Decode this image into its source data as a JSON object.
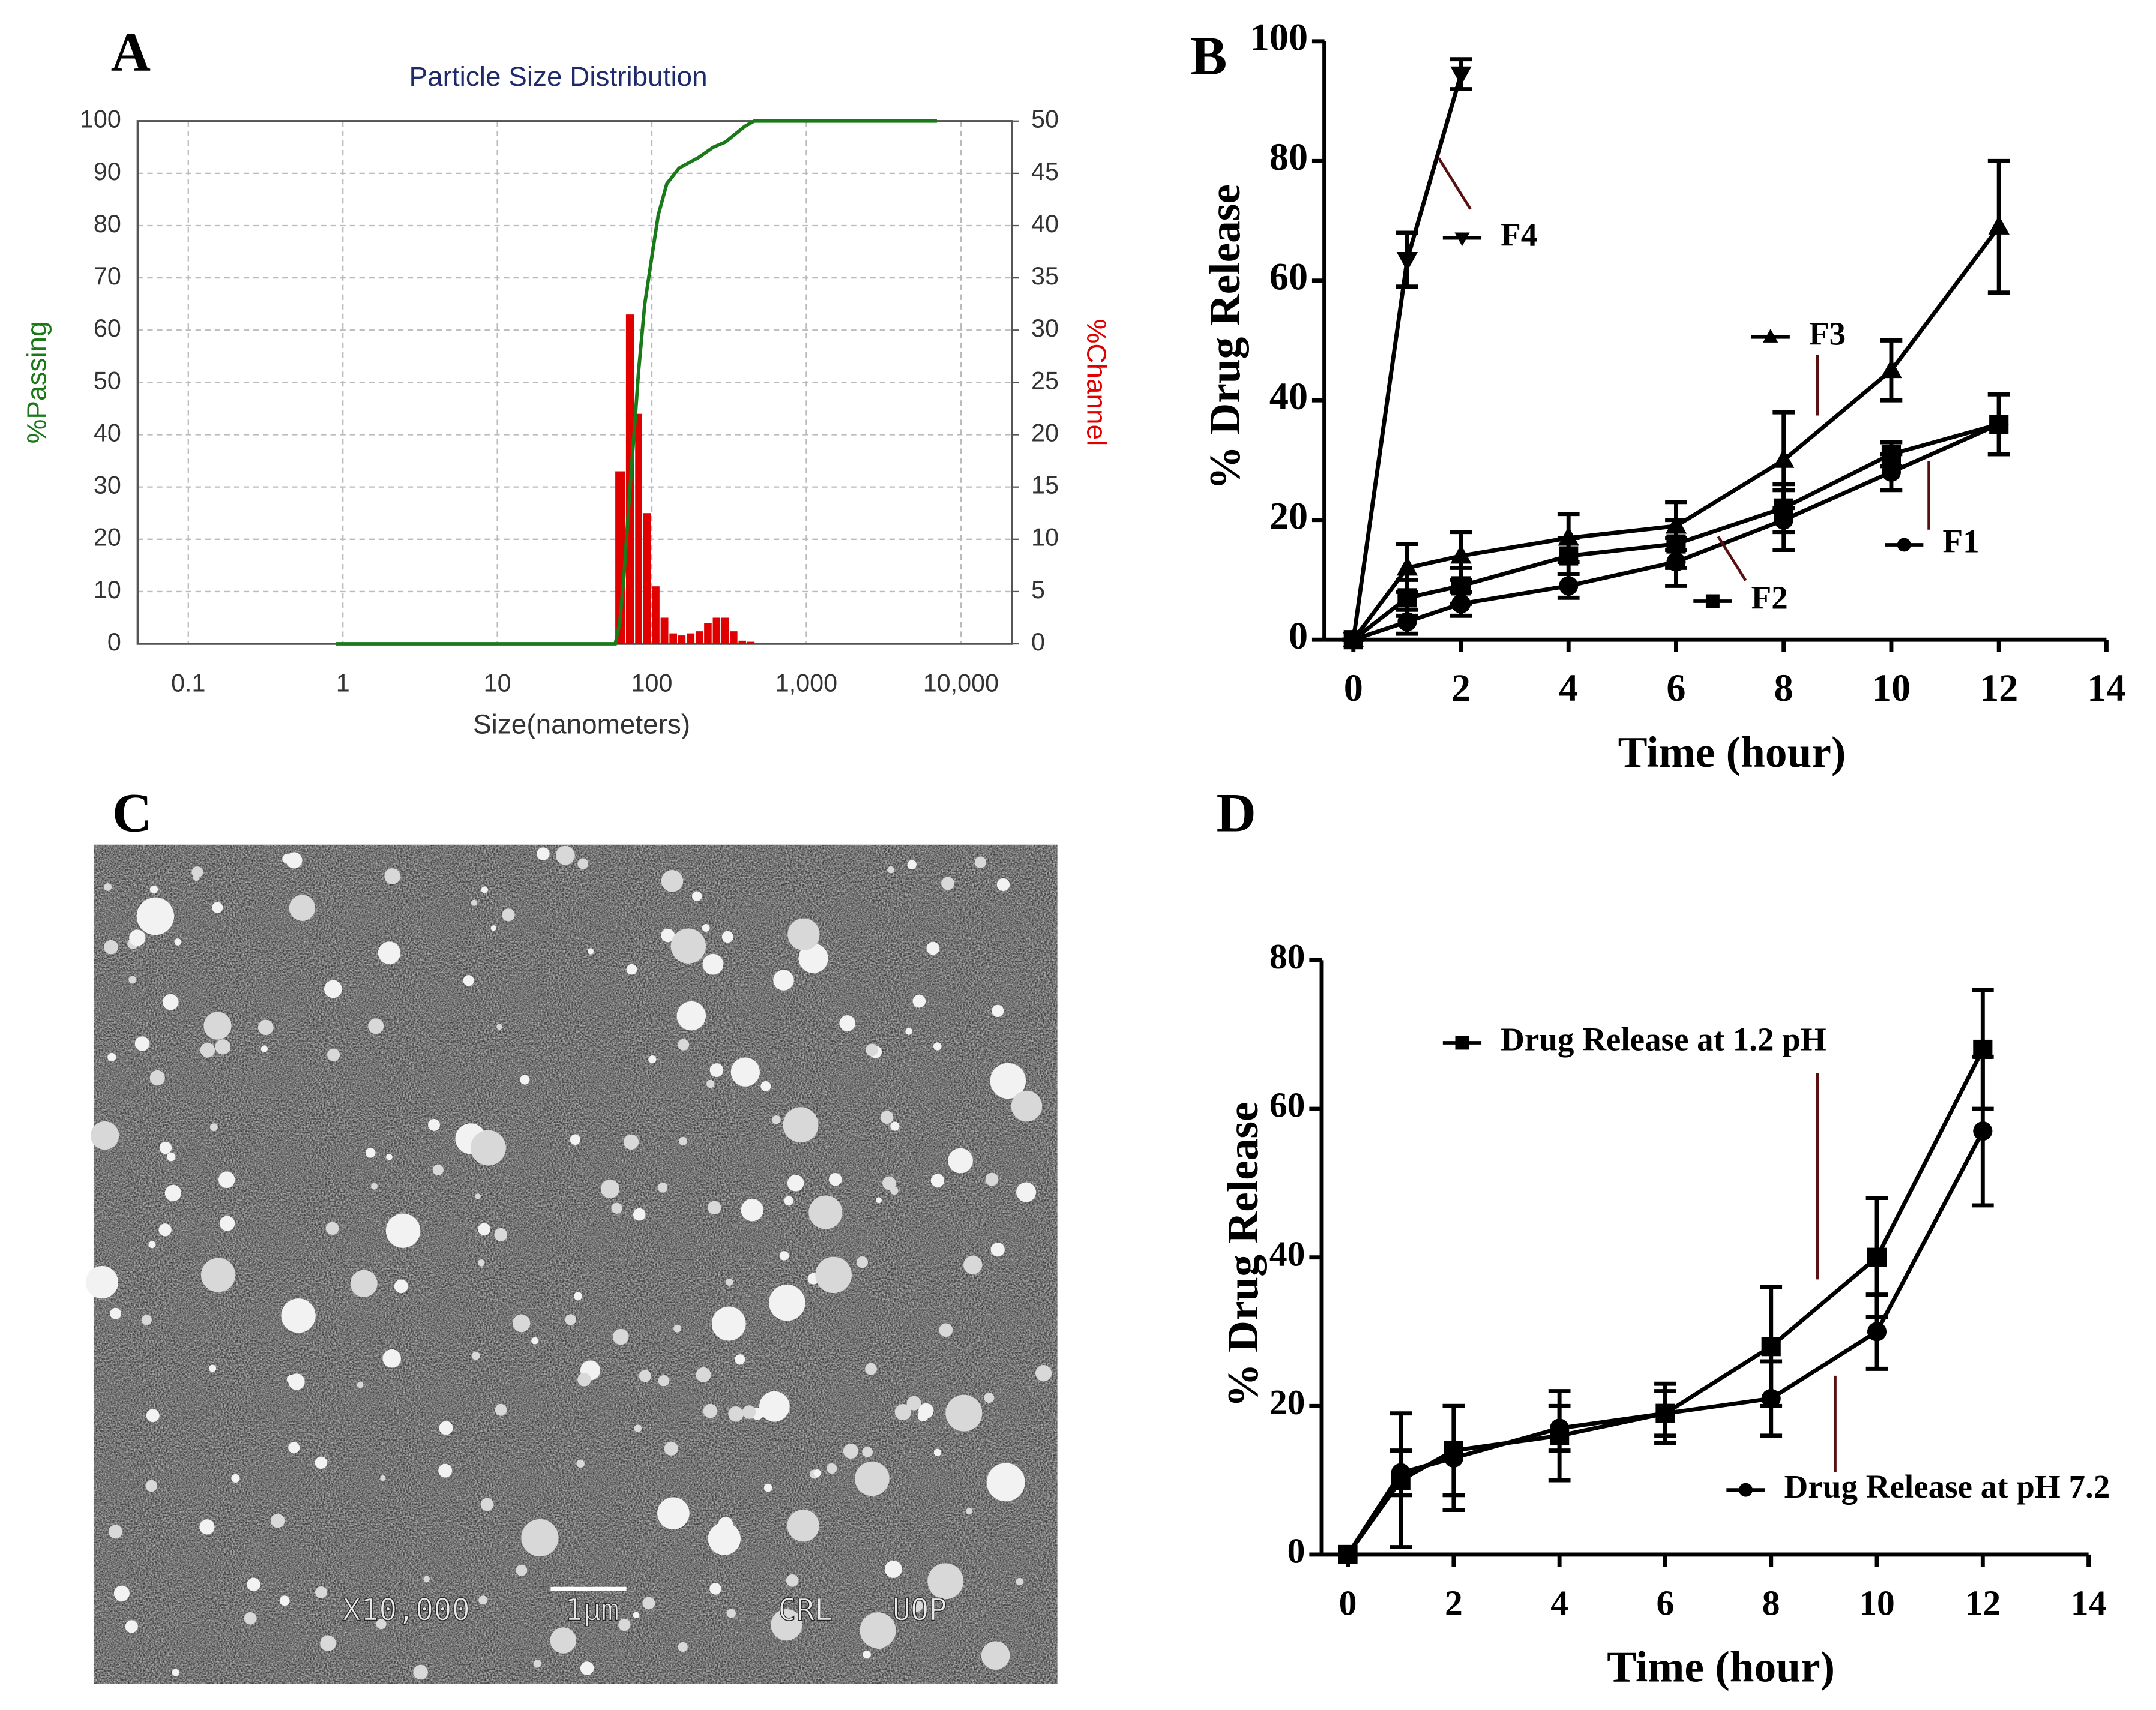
{
  "chart_data": [
    {
      "type": "histogram",
      "panel_label": "A",
      "title": "Particle Size Distribution",
      "xlabel": "Size(nanometers)",
      "ylabel": "%Passing",
      "y2label": "%Channel",
      "xlog": true,
      "grid": true,
      "xlim": [
        0.047,
        21400
      ],
      "xticks": [
        0.1,
        1,
        10,
        100,
        {
          "value": 1000,
          "label": "1,000"
        },
        {
          "value": 10000,
          "label": "10,000"
        }
      ],
      "ylim": [
        0,
        100
      ],
      "yticks": [
        0,
        10,
        20,
        30,
        40,
        50,
        60,
        70,
        80,
        90,
        100
      ],
      "y2lim": [
        0,
        50
      ],
      "y2ticks": [
        0,
        5,
        10,
        15,
        20,
        25,
        30,
        35,
        40,
        45,
        50
      ],
      "bins": [
        58,
        68,
        78,
        88,
        100,
        114,
        130,
        148,
        168,
        192,
        218,
        248,
        282,
        320,
        364,
        414,
        470
      ],
      "counts": [
        16.5,
        31.5,
        22,
        12.5,
        5.5,
        2.5,
        1,
        0.8,
        1,
        1.2,
        2,
        2.5,
        2.5,
        1.2,
        0.3,
        0.2
      ],
      "axis": "y2",
      "color": "#e00000",
      "line": {
        "color": "#1a7a1a",
        "axis": "y",
        "x": [
          0.9,
          10,
          58,
          62,
          66,
          70,
          74,
          78,
          82,
          90,
          100,
          110,
          125,
          150,
          200,
          250,
          300,
          400,
          460,
          1000,
          7000
        ],
        "values": [
          0,
          0,
          0,
          4,
          13,
          24,
          34,
          43,
          52,
          65,
          74,
          82,
          88,
          91,
          93,
          95,
          96,
          99,
          100,
          100,
          100
        ]
      }
    },
    {
      "type": "line",
      "panel_label": "B",
      "xlabel": "Time (hour)",
      "ylabel": "% Drug Release",
      "xlim": [
        0,
        14
      ],
      "xticks": [
        0,
        2,
        4,
        6,
        8,
        10,
        12,
        14
      ],
      "ylim": [
        0,
        100
      ],
      "yticks": [
        0,
        20,
        40,
        60,
        80,
        100
      ],
      "series": [
        {
          "name": "F1",
          "marker": "circle",
          "color": "#000000",
          "x": [
            0,
            1,
            2,
            4,
            6,
            8,
            10,
            12
          ],
          "values": [
            0,
            3,
            6,
            9,
            13,
            20,
            28,
            36
          ],
          "errors": [
            0,
            2,
            2,
            2,
            4,
            5,
            3,
            5
          ]
        },
        {
          "name": "F2",
          "marker": "square",
          "color": "#000000",
          "x": [
            0,
            1,
            2,
            4,
            6,
            8,
            10,
            12
          ],
          "values": [
            0,
            7,
            9,
            14,
            16,
            22,
            31,
            36
          ],
          "errors": [
            0,
            3,
            3,
            3,
            4,
            4,
            2,
            5
          ]
        },
        {
          "name": "F3",
          "marker": "triangle-up",
          "color": "#000000",
          "x": [
            0,
            1,
            2,
            4,
            6,
            8,
            10,
            12
          ],
          "values": [
            0,
            12,
            14,
            17,
            19,
            30,
            45,
            69
          ],
          "errors": [
            0,
            4,
            4,
            4,
            4,
            8,
            5,
            11
          ]
        },
        {
          "name": "F4",
          "marker": "triangle-down",
          "color": "#000000",
          "x": [
            0,
            1,
            2
          ],
          "values": [
            0,
            63.5,
            94.5
          ],
          "errors": [
            0,
            4.5,
            2.5
          ]
        }
      ]
    },
    {
      "type": "line",
      "panel_label": "D",
      "xlabel": "Time (hour)",
      "ylabel": "% Drug Release",
      "xlim": [
        0,
        14
      ],
      "xticks": [
        0,
        2,
        4,
        6,
        8,
        10,
        12,
        14
      ],
      "ylim": [
        0,
        80
      ],
      "yticks": [
        0,
        20,
        40,
        60,
        80
      ],
      "series": [
        {
          "name": "Drug Release at 1.2 pH",
          "marker": "square",
          "color": "#000000",
          "x": [
            0,
            1,
            2,
            4,
            6,
            8,
            10,
            12
          ],
          "values": [
            0,
            10,
            14,
            16,
            19,
            28,
            40,
            68
          ],
          "errors": [
            0,
            9,
            6,
            6,
            4,
            8,
            8,
            8
          ]
        },
        {
          "name": "Drug Release at pH 7.2",
          "marker": "circle",
          "color": "#000000",
          "x": [
            0,
            1,
            2,
            4,
            6,
            8,
            10,
            12
          ],
          "values": [
            0,
            11,
            13,
            17,
            19,
            21,
            30,
            57
          ],
          "errors": [
            0,
            3,
            7,
            3,
            3,
            5,
            5,
            10
          ]
        }
      ]
    }
  ],
  "image": {
    "panel_label": "C",
    "captions": [
      "X10,000",
      "1μm",
      "CRL",
      "UOP"
    ]
  }
}
